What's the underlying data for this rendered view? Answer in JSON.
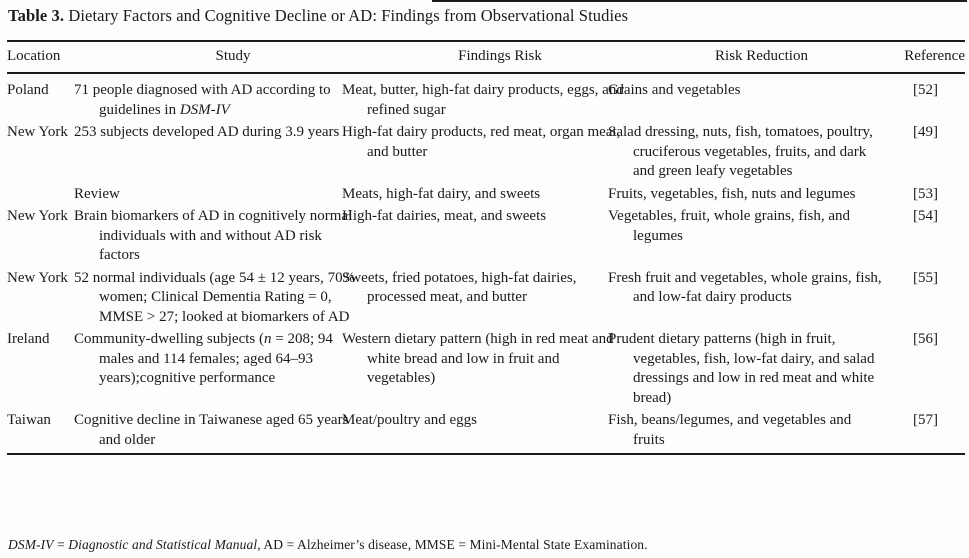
{
  "title": {
    "label": "Table 3.",
    "text": " Dietary Factors and Cognitive Decline or AD: Findings from Observational Studies"
  },
  "table": {
    "columns": [
      {
        "key": "location",
        "label": "Location"
      },
      {
        "key": "study",
        "label": "Study"
      },
      {
        "key": "findings_risk",
        "label": "Findings Risk"
      },
      {
        "key": "risk_reduction",
        "label": "Risk Reduction"
      },
      {
        "key": "reference",
        "label": "Reference"
      }
    ],
    "rows": [
      {
        "location": "Poland",
        "study": [
          {
            "text": "71 people diagnosed with AD according to guidelines in "
          },
          {
            "text": "DSM-IV",
            "italic": true
          }
        ],
        "findings_risk": "Meat, butter, high-fat dairy products, eggs, and refined sugar",
        "risk_reduction": "Grains and vegetables",
        "reference": "[52]"
      },
      {
        "location": "New York",
        "study": "253 subjects developed AD during 3.9 years",
        "findings_risk": "High-fat dairy products, red meat, organ meat, and butter",
        "risk_reduction": "Salad dressing, nuts, fish, tomatoes, poultry, cruciferous vegetables, fruits, and dark and green leafy vegetables",
        "reference": "[49]"
      },
      {
        "location": "",
        "study": "Review",
        "findings_risk": "Meats, high-fat dairy, and sweets",
        "risk_reduction": "Fruits, vegetables, fish, nuts and legumes",
        "reference": "[53]"
      },
      {
        "location": "New York",
        "study": "Brain biomarkers of AD in cognitively normal individuals with and without AD risk factors",
        "findings_risk": "High-fat dairies, meat, and sweets",
        "risk_reduction": "Vegetables, fruit, whole grains, fish, and legumes",
        "reference": "[54]"
      },
      {
        "location": "New York",
        "study": "52 normal individuals (age 54 ± 12 years, 70% women; Clinical Dementia Rating = 0, MMSE > 27; looked at biomarkers of AD",
        "findings_risk": "Sweets, fried potatoes, high-fat dairies, processed meat, and butter",
        "risk_reduction": "Fresh fruit and vegetables, whole grains, fish, and low-fat dairy products",
        "reference": "[55]"
      },
      {
        "location": "Ireland",
        "study": [
          {
            "text": "Community-dwelling subjects ("
          },
          {
            "text": "n",
            "italic": true
          },
          {
            "text": " = 208; 94 males and 114 females; aged 64–93 years);cognitive performance"
          }
        ],
        "findings_risk": "Western dietary pattern (high in red meat and white bread and low in fruit and vegetables)",
        "risk_reduction": "Prudent dietary patterns (high in fruit, vegetables, fish, low-fat dairy, and salad dressings and low in red meat and white bread)",
        "reference": "[56]"
      },
      {
        "location": "Taiwan",
        "study": "Cognitive decline in Taiwanese aged 65 years and older",
        "findings_risk": "Meat/poultry and eggs",
        "risk_reduction": "Fish, beans/legumes, and vegetables and fruits",
        "reference": "[57]"
      }
    ]
  },
  "footnote": [
    {
      "text": "DSM-IV",
      "italic": true
    },
    {
      "text": " = "
    },
    {
      "text": "Diagnostic and Statistical Manual",
      "italic": true
    },
    {
      "text": ", AD = Alzheimer’s disease, MMSE = Mini-Mental State Examination."
    }
  ]
}
